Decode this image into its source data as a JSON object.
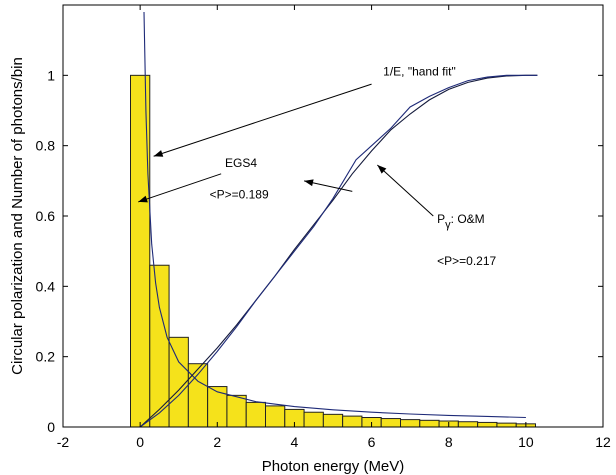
{
  "chart_data": {
    "type": "bar",
    "xlabel": "Photon energy (MeV)",
    "ylabel": "Circular polarization and Number of photons/bin",
    "xlim": [
      -2,
      12
    ],
    "ylim": [
      0,
      1.2
    ],
    "xticks": [
      -2,
      0,
      2,
      4,
      6,
      8,
      10,
      12
    ],
    "yticks": [
      0,
      0.2,
      0.4,
      0.6,
      0.8,
      1
    ],
    "xtick_labels": [
      "-2",
      "0",
      "2",
      "4",
      "6",
      "8",
      "10",
      "12"
    ],
    "ytick_labels": [
      "0",
      "0.2",
      "0.4",
      "0.6",
      "0.8",
      "1"
    ],
    "grid": false,
    "colors": {
      "bar_fill": "#f5e21b",
      "bar_edge": "#222222",
      "curve": "#1e2a78",
      "curve_dark": "#141a3c"
    },
    "histogram": {
      "bin_width": 0.5,
      "bins_x": [
        0,
        0.5,
        1,
        1.5,
        2,
        2.5,
        3,
        3.5,
        4,
        4.5,
        5,
        5.5,
        6,
        6.5,
        7,
        7.5,
        8,
        8.5,
        9,
        9.5,
        10
      ],
      "values": [
        1.0,
        0.46,
        0.255,
        0.18,
        0.115,
        0.09,
        0.07,
        0.06,
        0.05,
        0.042,
        0.036,
        0.031,
        0.027,
        0.024,
        0.021,
        0.019,
        0.017,
        0.015,
        0.013,
        0.011,
        0.009
      ]
    },
    "series": [
      {
        "x": [
          0.1,
          0.15,
          0.2,
          0.3,
          0.4,
          0.5,
          0.7,
          1,
          1.5,
          2,
          3,
          4,
          5,
          6,
          7,
          8,
          9,
          10
        ],
        "values": [
          1.18,
          0.9,
          0.72,
          0.52,
          0.41,
          0.34,
          0.255,
          0.185,
          0.13,
          0.1,
          0.072,
          0.058,
          0.049,
          0.042,
          0.037,
          0.033,
          0.03,
          0.027
        ]
      },
      {
        "x": [
          0,
          0.5,
          1,
          1.5,
          2,
          2.5,
          3,
          3.5,
          4,
          4.5,
          5,
          5.5,
          6,
          6.5,
          7,
          7.5,
          8,
          8.5,
          9,
          9.5,
          10,
          10.3
        ],
        "values": [
          0,
          0.05,
          0.105,
          0.165,
          0.225,
          0.29,
          0.36,
          0.43,
          0.505,
          0.575,
          0.645,
          0.72,
          0.785,
          0.845,
          0.89,
          0.93,
          0.96,
          0.98,
          0.992,
          0.998,
          1.0,
          1.0
        ]
      },
      {
        "x": [
          0,
          0.5,
          1,
          1.5,
          2,
          2.5,
          3,
          3.5,
          4,
          4.5,
          5,
          5.6,
          6,
          6.5,
          7,
          7.5,
          8,
          8.5,
          9,
          9.5,
          10,
          10.3
        ],
        "values": [
          0,
          0.04,
          0.09,
          0.15,
          0.215,
          0.285,
          0.36,
          0.43,
          0.5,
          0.57,
          0.65,
          0.76,
          0.8,
          0.85,
          0.91,
          0.94,
          0.965,
          0.985,
          0.995,
          1.0,
          1.0,
          1.0
        ]
      }
    ],
    "annotations": [
      {
        "label": "1/E, \"hand fit\"",
        "x": 6.3,
        "y": 1.0,
        "arrow_from": [
          6.0,
          0.975
        ],
        "arrow_to": [
          0.35,
          0.77
        ]
      },
      {
        "label": "EGS4",
        "x": 2.2,
        "y": 0.74,
        "arrow_from": [
          2.1,
          0.72
        ],
        "arrow_to": [
          -0.05,
          0.64
        ]
      },
      {
        "label": "<P>=0.189",
        "x": 1.8,
        "y": 0.65
      },
      {
        "label": "P",
        "sub": "γ",
        "suffix": ": O&M",
        "x": 7.7,
        "y": 0.58,
        "arrow_from": [
          7.6,
          0.6
        ],
        "arrow_to": [
          6.15,
          0.745
        ]
      },
      {
        "label": "<P>=0.217",
        "x": 7.7,
        "y": 0.46
      },
      {
        "label": "",
        "arrow_from": [
          5.5,
          0.67
        ],
        "arrow_to": [
          4.25,
          0.7
        ]
      }
    ]
  }
}
